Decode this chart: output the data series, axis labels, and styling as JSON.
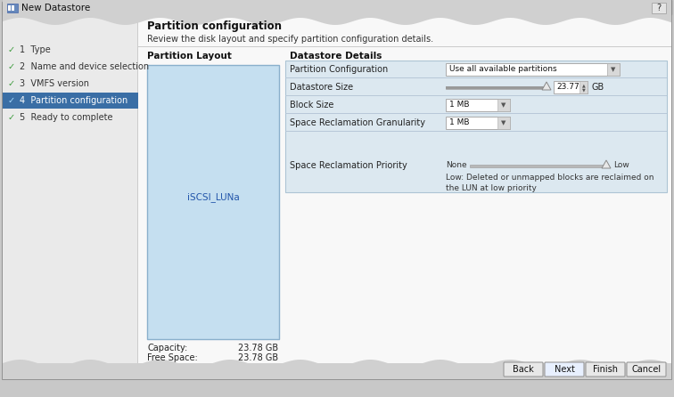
{
  "title_bar": "New Datastore",
  "nav_items": [
    {
      "num": "1",
      "label": "Type",
      "active": false
    },
    {
      "num": "2",
      "label": "Name and device selection",
      "active": false
    },
    {
      "num": "3",
      "label": "VMFS version",
      "active": false
    },
    {
      "num": "4",
      "label": "Partition configuration",
      "active": true
    },
    {
      "num": "5",
      "label": "Ready to complete",
      "active": false
    }
  ],
  "active_nav_bg": "#3a6ea5",
  "active_nav_fg": "#ffffff",
  "inactive_nav_fg": "#333333",
  "check_color_inactive": "#3a9a3a",
  "check_color_active": "#aaddff",
  "section_title": "Partition configuration",
  "section_subtitle": "Review the disk layout and specify partition configuration details.",
  "partition_layout_label": "Partition Layout",
  "datastore_details_label": "Datastore Details",
  "partition_box_color": "#c5dff0",
  "partition_box_border": "#8ab0cc",
  "partition_box_label": "iSCSI_LUNa",
  "capacity_label": "Capacity:",
  "capacity_value": "23.78 GB",
  "free_space_label": "Free Space:",
  "free_space_value": "23.78 GB",
  "row_labels": [
    "Partition Configuration",
    "Datastore Size",
    "Block Size",
    "Space Reclamation Granularity",
    "Space Reclamation Priority"
  ],
  "dd0_text": "Use all available partitions",
  "size_value": "23.77",
  "size_unit": "GB",
  "dd2_text": "1 MB",
  "dd3_text": "1 MB",
  "slider_left": "None",
  "slider_right": "Low",
  "low_desc_line1": "Low: Deleted or unmapped blocks are reclaimed on",
  "low_desc_line2": "the LUN at low priority",
  "buttons": [
    "Back",
    "Next",
    "Finish",
    "Cancel"
  ],
  "outer_bg": "#c8c8c8",
  "dialog_bg": "#f0f0f0",
  "left_panel_bg": "#eaeaea",
  "content_bg": "#f8f8f8",
  "detail_panel_bg": "#dce8f0",
  "detail_panel_border": "#adc4d4",
  "bottom_bar_bg": "#d0d0d0",
  "title_bar_bg": "#e0e0e0",
  "wavy_bg": "#d0d0d0"
}
